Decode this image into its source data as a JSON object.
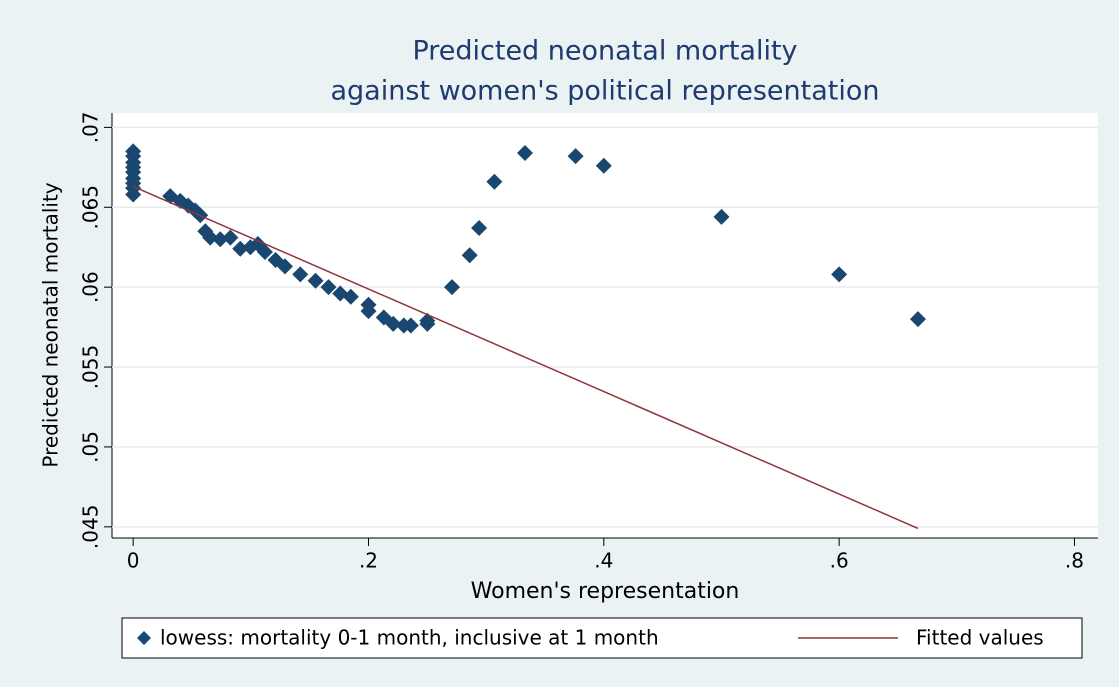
{
  "chart_data": {
    "type": "scatter",
    "title": [
      "Predicted neonatal mortality",
      "against women's political representation"
    ],
    "xlabel": "Women's representation",
    "ylabel": "Predicted neonatal mortality",
    "xlim": [
      -0.018,
      0.82
    ],
    "ylim": [
      0.0443,
      0.0709
    ],
    "xticks": [
      0,
      {
        "value": 0.2,
        "label": ".2"
      },
      {
        "value": 0.4,
        "label": ".4"
      },
      {
        "value": 0.6,
        "label": ".6"
      },
      {
        "value": 0.8,
        "label": ".8"
      }
    ],
    "yticks": [
      {
        "value": 0.045,
        "label": ".045"
      },
      {
        "value": 0.05,
        "label": ".05"
      },
      {
        "value": 0.055,
        "label": ".055"
      },
      {
        "value": 0.06,
        "label": ".06"
      },
      {
        "value": 0.065,
        "label": ".065"
      },
      {
        "value": 0.07,
        "label": ".07"
      }
    ],
    "grid": true,
    "legend": "bottom",
    "series": [
      {
        "name": "lowess: mortality 0-1 month, inclusive at 1 month",
        "type": "scatter",
        "color": "#1a476f",
        "x": [
          0,
          0,
          0,
          0,
          0,
          0,
          0,
          0,
          0,
          0.0315,
          0.04,
          0.0468,
          0.0528,
          0.057,
          0.0613,
          0.0655,
          0.074,
          0.0826,
          0.091,
          0.0996,
          0.106,
          0.112,
          0.121,
          0.129,
          0.142,
          0.155,
          0.166,
          0.176,
          0.185,
          0.2,
          0.2,
          0.213,
          0.221,
          0.23,
          0.236,
          0.25,
          0.25,
          0.271,
          0.286,
          0.294,
          0.307,
          0.333,
          0.376,
          0.4,
          0.5,
          0.6,
          0.667
        ],
        "values": [
          0.0685,
          0.0682,
          0.0678,
          0.0675,
          0.0672,
          0.0668,
          0.0665,
          0.0662,
          0.0658,
          0.0657,
          0.0654,
          0.0651,
          0.0648,
          0.0645,
          0.0635,
          0.0631,
          0.063,
          0.0631,
          0.0624,
          0.0625,
          0.0627,
          0.0622,
          0.0617,
          0.0613,
          0.0608,
          0.0604,
          0.06,
          0.0596,
          0.0594,
          0.0589,
          0.0585,
          0.0581,
          0.0577,
          0.0576,
          0.0576,
          0.0579,
          0.0577,
          0.06,
          0.062,
          0.0637,
          0.0666,
          0.0684,
          0.0682,
          0.0676,
          0.0644,
          0.0608,
          0.058
        ]
      },
      {
        "name": "Fitted values",
        "type": "line",
        "color": "#90353b",
        "x": [
          0,
          0.667
        ],
        "values": [
          0.0663,
          0.0449
        ]
      }
    ]
  }
}
